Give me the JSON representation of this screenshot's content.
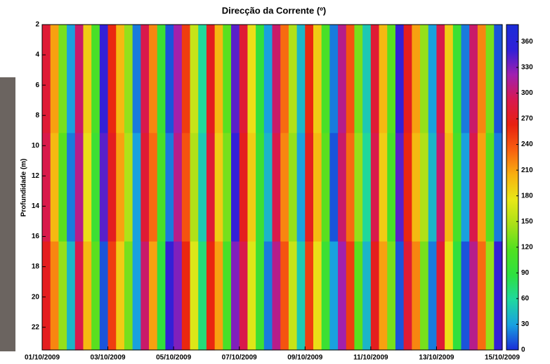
{
  "chart_data": {
    "type": "heatmap",
    "title": "Direcção da Corrente (º)",
    "y_label": "Profundidade (m)",
    "xlim": [
      0,
      14
    ],
    "xticks": [
      {
        "value": 0,
        "label": "01/10/2009"
      },
      {
        "value": 2,
        "label": "03/10/2009"
      },
      {
        "value": 4,
        "label": "05/10/2009"
      },
      {
        "value": 6,
        "label": "07/10/2009"
      },
      {
        "value": 8,
        "label": "09/10/2009"
      },
      {
        "value": 10,
        "label": "11/10/2009"
      },
      {
        "value": 12,
        "label": "13/10/2009"
      },
      {
        "value": 14,
        "label": "15/10/2009"
      }
    ],
    "ylim": [
      2,
      23.5
    ],
    "y_reversed": true,
    "yticks": [
      2,
      4,
      6,
      8,
      10,
      12,
      14,
      16,
      18,
      20,
      22
    ],
    "clim": [
      0,
      380
    ],
    "cticks": [
      0,
      30,
      60,
      90,
      120,
      150,
      180,
      210,
      240,
      270,
      300,
      330,
      360
    ],
    "colormap": [
      "#1a2cd8",
      "#19a0e0",
      "#1fd8a0",
      "#2ee040",
      "#50e020",
      "#a8e018",
      "#e8e818",
      "#f8b010",
      "#f86010",
      "#e82010",
      "#d81850",
      "#a020b0",
      "#3020d8",
      "#1a2cd8"
    ],
    "values": [
      [
        280,
        210,
        130,
        30,
        300,
        190,
        110,
        350,
        260,
        200,
        140,
        20,
        290,
        220,
        100,
        10,
        320,
        250,
        160,
        60,
        270,
        200,
        120,
        340,
        280,
        180,
        90,
        30,
        300,
        230,
        150,
        40,
        260,
        190,
        110,
        20,
        310,
        240,
        130,
        50,
        280,
        200,
        120,
        350,
        270,
        210,
        140,
        30,
        290,
        190,
        100,
        20,
        300,
        220,
        130,
        10
      ],
      [
        290,
        200,
        120,
        20,
        310,
        180,
        100,
        340,
        270,
        210,
        150,
        30,
        280,
        230,
        110,
        20,
        310,
        240,
        150,
        50,
        280,
        190,
        130,
        350,
        270,
        190,
        100,
        40,
        290,
        220,
        140,
        30,
        270,
        200,
        120,
        10,
        300,
        230,
        140,
        60,
        290,
        190,
        110,
        340,
        260,
        200,
        150,
        40,
        300,
        200,
        110,
        30,
        290,
        210,
        120,
        20
      ],
      [
        270,
        220,
        140,
        40,
        290,
        200,
        120,
        10,
        250,
        190,
        130,
        30,
        300,
        210,
        90,
        350,
        330,
        260,
        170,
        70,
        260,
        210,
        110,
        330,
        290,
        170,
        100,
        20,
        310,
        240,
        160,
        50,
        250,
        180,
        100,
        30,
        320,
        250,
        120,
        40,
        270,
        210,
        130,
        10,
        280,
        220,
        130,
        20,
        280,
        180,
        90,
        10,
        310,
        230,
        140,
        350
      ]
    ]
  }
}
